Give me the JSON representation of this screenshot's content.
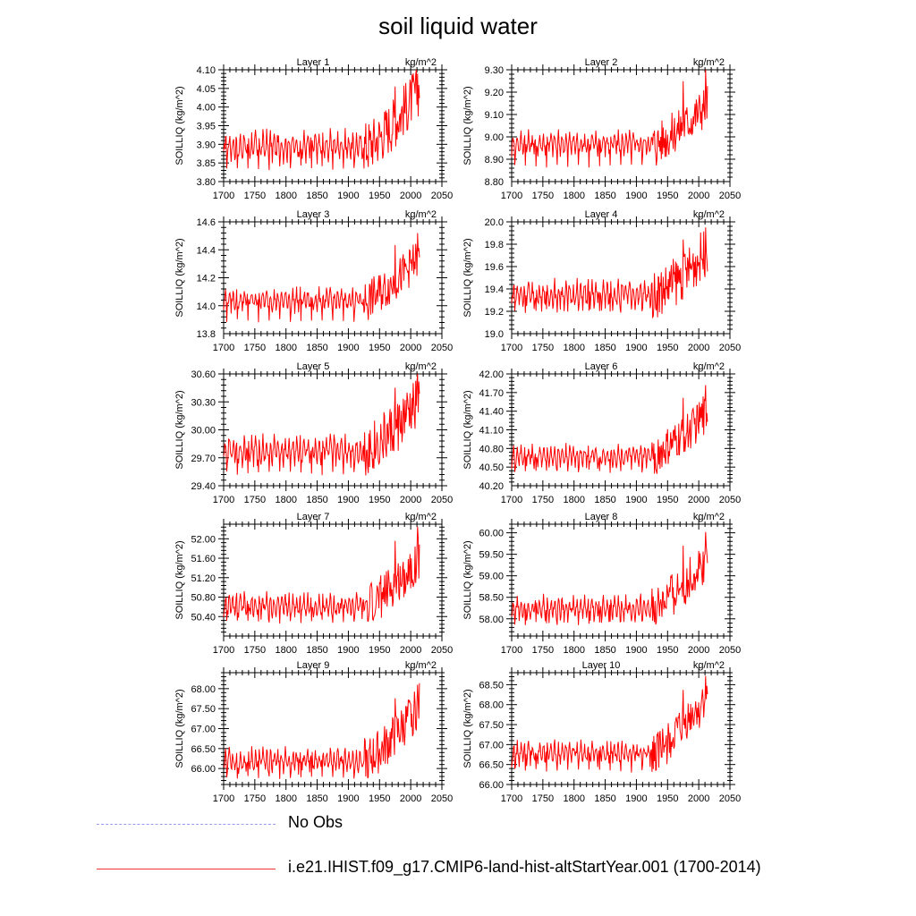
{
  "title": "soil liquid water",
  "legend": [
    {
      "label": "No Obs",
      "style": "dashed",
      "color": "#9a9aee"
    },
    {
      "label": "i.e21.IHIST.f09_g17.CMIP6-land-hist-altStartYear.001 (1700-2014)",
      "style": "solid",
      "color": "#ff0000"
    }
  ],
  "chart_data": [
    {
      "type": "line",
      "title": "Layer 1",
      "units": "kg/m^2",
      "ylabel": "SOILLIQ  (kg/m^2)",
      "xlim": [
        1700,
        2050
      ],
      "ylim": [
        3.8,
        4.1
      ],
      "yticks": [
        "3.80",
        "3.85",
        "3.90",
        "3.95",
        "4.00",
        "4.05",
        "4.10"
      ],
      "xticks": [
        "1700",
        "1750",
        "1800",
        "1850",
        "1900",
        "1950",
        "2000",
        "2050"
      ],
      "series": [
        {
          "color": "#ff0000",
          "years": [
            1700,
            2014
          ],
          "base": 3.895,
          "amp": 0.045,
          "trough": 3.83,
          "end_value": 4.05,
          "peak": 4.09
        }
      ]
    },
    {
      "type": "line",
      "title": "Layer 2",
      "units": "kg/m^2",
      "ylabel": "SOILLIQ  (kg/m^2)",
      "xlim": [
        1700,
        2050
      ],
      "ylim": [
        8.8,
        9.3
      ],
      "yticks": [
        "8.80",
        "8.90",
        "9.00",
        "9.10",
        "9.20",
        "9.30"
      ],
      "xticks": [
        "1700",
        "1750",
        "1800",
        "1850",
        "1900",
        "1950",
        "2000",
        "2050"
      ],
      "series": [
        {
          "color": "#ff0000",
          "years": [
            1700,
            2014
          ],
          "base": 8.97,
          "amp": 0.06,
          "trough": 8.86,
          "end_value": 9.15,
          "peak": 9.31
        }
      ]
    },
    {
      "type": "line",
      "title": "Layer 3",
      "units": "kg/m^2",
      "ylabel": "SOILLIQ  (kg/m^2)",
      "xlim": [
        1700,
        2050
      ],
      "ylim": [
        13.8,
        14.6
      ],
      "yticks": [
        "13.8",
        "14.0",
        "14.2",
        "14.4",
        "14.6"
      ],
      "xticks": [
        "1700",
        "1750",
        "1800",
        "1850",
        "1900",
        "1950",
        "2000",
        "2050"
      ],
      "series": [
        {
          "color": "#ff0000",
          "years": [
            1700,
            2014
          ],
          "base": 14.04,
          "amp": 0.09,
          "trough": 13.88,
          "end_value": 14.35,
          "peak": 14.52
        }
      ]
    },
    {
      "type": "line",
      "title": "Layer 4",
      "units": "kg/m^2",
      "ylabel": "SOILLIQ  (kg/m^2)",
      "xlim": [
        1700,
        2050
      ],
      "ylim": [
        19.0,
        20.0
      ],
      "yticks": [
        "19.0",
        "19.2",
        "19.4",
        "19.6",
        "19.8",
        "20.0"
      ],
      "xticks": [
        "1700",
        "1750",
        "1800",
        "1850",
        "1900",
        "1950",
        "2000",
        "2050"
      ],
      "series": [
        {
          "color": "#ff0000",
          "years": [
            1700,
            2014
          ],
          "base": 19.35,
          "amp": 0.14,
          "trough": 19.18,
          "end_value": 19.75,
          "peak": 19.95
        }
      ]
    },
    {
      "type": "line",
      "title": "Layer 5",
      "units": "kg/m^2",
      "ylabel": "SOILLIQ  (kg/m^2)",
      "xlim": [
        1700,
        2050
      ],
      "ylim": [
        29.4,
        30.6
      ],
      "yticks": [
        "29.40",
        "29.70",
        "30.00",
        "30.30",
        "30.60"
      ],
      "xticks": [
        "1700",
        "1750",
        "1800",
        "1850",
        "1900",
        "1950",
        "2000",
        "2050"
      ],
      "series": [
        {
          "color": "#ff0000",
          "years": [
            1700,
            2014
          ],
          "base": 29.78,
          "amp": 0.18,
          "trough": 29.5,
          "end_value": 30.3,
          "peak": 30.6
        }
      ]
    },
    {
      "type": "line",
      "title": "Layer 6",
      "units": "kg/m^2",
      "ylabel": "SOILLIQ  (kg/m^2)",
      "xlim": [
        1700,
        2050
      ],
      "ylim": [
        40.2,
        42.0
      ],
      "yticks": [
        "40.20",
        "40.50",
        "40.80",
        "41.10",
        "41.40",
        "41.70",
        "42.00"
      ],
      "xticks": [
        "1700",
        "1750",
        "1800",
        "1850",
        "1900",
        "1950",
        "2000",
        "2050"
      ],
      "series": [
        {
          "color": "#ff0000",
          "years": [
            1700,
            2014
          ],
          "base": 40.68,
          "amp": 0.2,
          "trough": 40.4,
          "end_value": 41.4,
          "peak": 41.82
        }
      ]
    },
    {
      "type": "line",
      "title": "Layer 7",
      "units": "kg/m^2",
      "ylabel": "SOILLIQ  (kg/m^2)",
      "xlim": [
        1700,
        2050
      ],
      "ylim": [
        50.0,
        52.3
      ],
      "yticks": [
        "50.40",
        "50.80",
        "51.20",
        "51.60",
        "52.00"
      ],
      "xticks": [
        "1700",
        "1750",
        "1800",
        "1850",
        "1900",
        "1950",
        "2000",
        "2050"
      ],
      "series": [
        {
          "color": "#ff0000",
          "years": [
            1700,
            2014
          ],
          "base": 50.62,
          "amp": 0.28,
          "trough": 50.25,
          "end_value": 51.6,
          "peak": 52.25
        }
      ]
    },
    {
      "type": "line",
      "title": "Layer 8",
      "units": "kg/m^2",
      "ylabel": "SOILLIQ  (kg/m^2)",
      "xlim": [
        1700,
        2050
      ],
      "ylim": [
        57.6,
        60.2
      ],
      "yticks": [
        "58.00",
        "58.50",
        "59.00",
        "59.50",
        "60.00"
      ],
      "xticks": [
        "1700",
        "1750",
        "1800",
        "1850",
        "1900",
        "1950",
        "2000",
        "2050"
      ],
      "series": [
        {
          "color": "#ff0000",
          "years": [
            1700,
            2014
          ],
          "base": 58.25,
          "amp": 0.32,
          "trough": 57.85,
          "end_value": 59.4,
          "peak": 60.02
        }
      ]
    },
    {
      "type": "line",
      "title": "Layer 9",
      "units": "kg/m^2",
      "ylabel": "SOILLIQ  (kg/m^2)",
      "xlim": [
        1700,
        2050
      ],
      "ylim": [
        65.6,
        68.4
      ],
      "yticks": [
        "66.00",
        "66.50",
        "67.00",
        "67.50",
        "68.00"
      ],
      "xticks": [
        "1700",
        "1750",
        "1800",
        "1850",
        "1900",
        "1950",
        "2000",
        "2050"
      ],
      "series": [
        {
          "color": "#ff0000",
          "years": [
            1700,
            2014
          ],
          "base": 66.2,
          "amp": 0.35,
          "trough": 65.72,
          "end_value": 67.6,
          "peak": 68.1
        }
      ]
    },
    {
      "type": "line",
      "title": "Layer 10",
      "units": "kg/m^2",
      "ylabel": "SOILLIQ  (kg/m^2)",
      "xlim": [
        1700,
        2050
      ],
      "ylim": [
        66.0,
        68.8
      ],
      "yticks": [
        "66.00",
        "66.50",
        "67.00",
        "67.50",
        "68.00",
        "68.50"
      ],
      "xticks": [
        "1700",
        "1750",
        "1800",
        "1850",
        "1900",
        "1950",
        "2000",
        "2050"
      ],
      "series": [
        {
          "color": "#ff0000",
          "years": [
            1700,
            2014
          ],
          "base": 66.78,
          "amp": 0.32,
          "trough": 66.3,
          "end_value": 68.2,
          "peak": 68.72
        }
      ]
    }
  ]
}
